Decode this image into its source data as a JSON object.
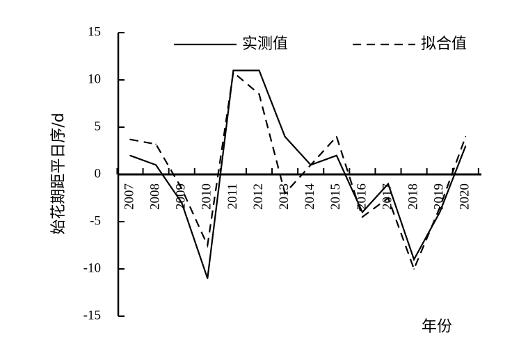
{
  "chart_data": {
    "type": "line",
    "ylabel": "始花期距平日序/d",
    "xlabel": "年份",
    "ylim": [
      -15,
      15
    ],
    "yticks": [
      15,
      10,
      5,
      0,
      -5,
      -10,
      -15
    ],
    "x": [
      "2007",
      "2008",
      "2009",
      "2010",
      "2011",
      "2012",
      "2013",
      "2014",
      "2015",
      "2016",
      "2017",
      "2018",
      "2019",
      "2020"
    ],
    "series": [
      {
        "name": "实测值",
        "style": "solid",
        "values": [
          2,
          1,
          -3,
          -11,
          11,
          11,
          4,
          1,
          2,
          -4,
          -1,
          -9,
          -4,
          3
        ]
      },
      {
        "name": "拟合值",
        "style": "dashed",
        "values": [
          3.7,
          3.2,
          -1.5,
          -7.5,
          10.8,
          8.5,
          -2,
          1,
          4,
          -4.5,
          -2.5,
          -10,
          -3.5,
          4
        ]
      }
    ],
    "legend": "top",
    "grid": false,
    "colors": {
      "line": "#000000"
    }
  }
}
